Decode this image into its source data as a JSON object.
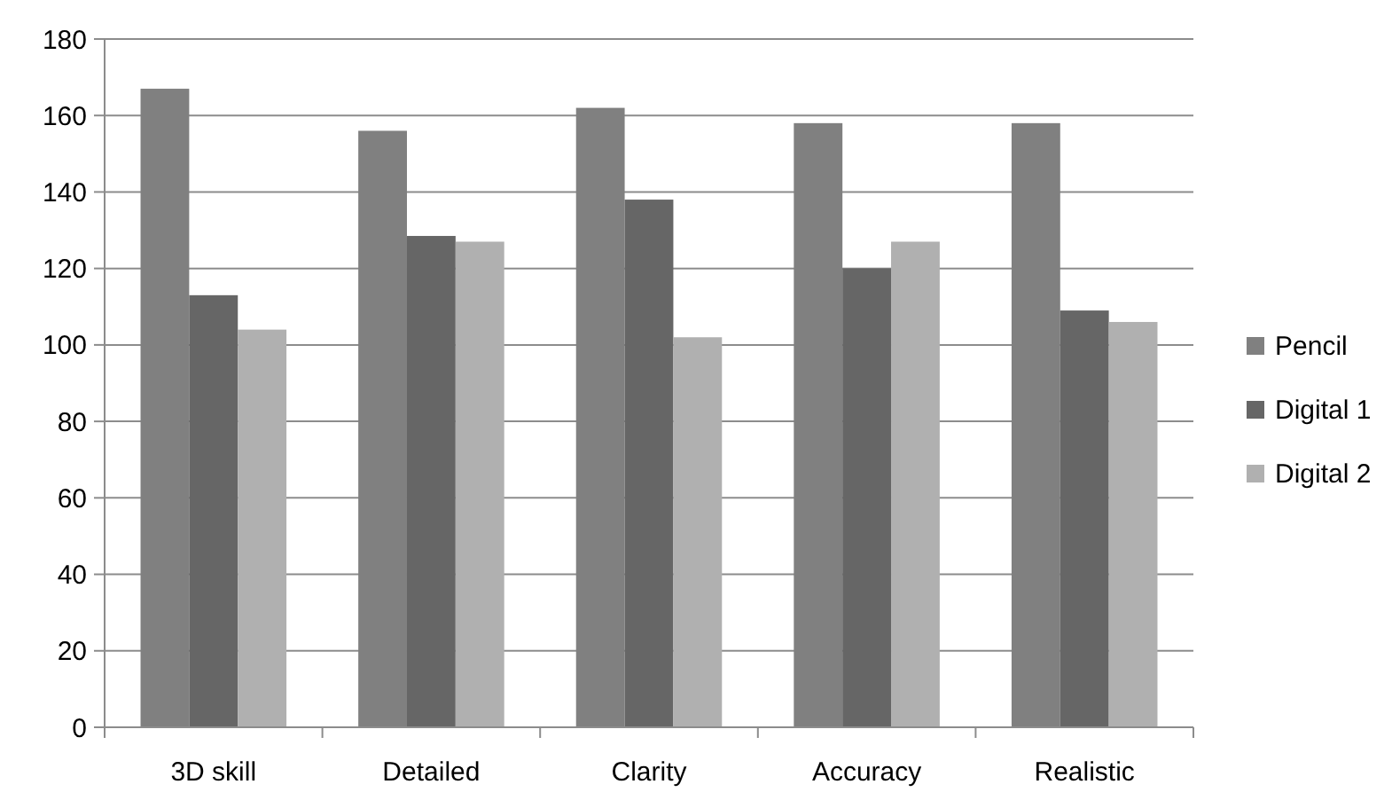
{
  "chart_data": {
    "type": "bar",
    "categories": [
      "3D skill",
      "Detailed",
      "Clarity",
      "Accuracy",
      "Realistic"
    ],
    "series": [
      {
        "name": "Pencil",
        "color": "#808080",
        "values": [
          167,
          156,
          162,
          158,
          158
        ]
      },
      {
        "name": "Digital 1",
        "color": "#666666",
        "values": [
          113,
          128.5,
          138,
          120,
          109
        ]
      },
      {
        "name": "Digital 2",
        "color": "#b0b0b0",
        "values": [
          104,
          127,
          102,
          127,
          106
        ]
      }
    ],
    "ylim": [
      0,
      180
    ],
    "yticks": [
      0,
      20,
      40,
      60,
      80,
      100,
      120,
      140,
      160,
      180
    ],
    "grid": "y",
    "legend": "right"
  }
}
